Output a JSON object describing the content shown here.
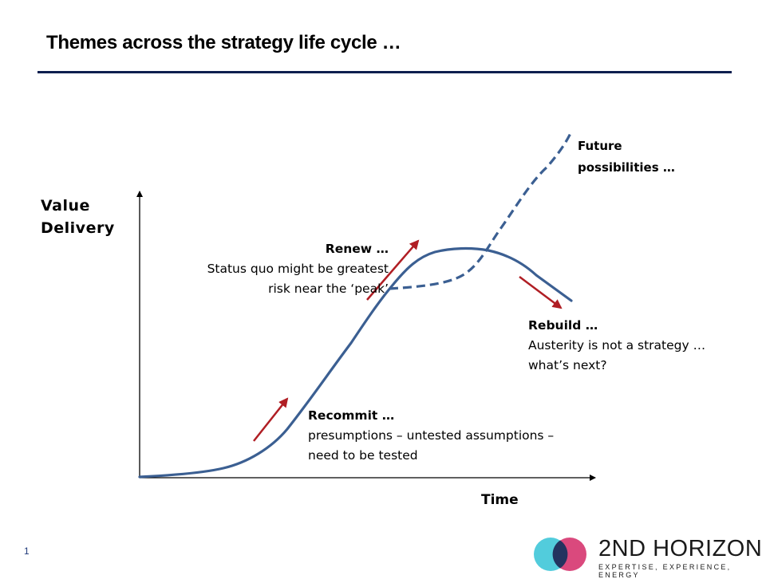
{
  "title": "Themes across the strategy life cycle …",
  "axes": {
    "y_label_line1": "Value",
    "y_label_line2": "Delivery",
    "x_label": "Time"
  },
  "annotations": {
    "future": {
      "line1": "Future",
      "line2": "possibilities  …"
    },
    "renew": {
      "heading": "Renew …",
      "line1": "Status quo might be greatest",
      "line2": "risk near the ‘peak’"
    },
    "rebuild": {
      "heading": "Rebuild …",
      "line1": "Austerity is not a strategy …",
      "line2": "what’s next?"
    },
    "recommit": {
      "heading": "Recommit …",
      "line1": "presumptions – untested assumptions –",
      "line2": "need to be tested"
    }
  },
  "page_number": "1",
  "logo": {
    "name": "2ND HORIZON",
    "tagline": "EXPERTISE, EXPERIENCE, ENERGY"
  },
  "colors": {
    "curve": "#3b5f92",
    "arrows": "#b01e24",
    "title_rule": "#0d1f4f",
    "logo_cyan": "#3fc7d8",
    "logo_magenta": "#d6356f",
    "logo_navy": "#23335f"
  }
}
